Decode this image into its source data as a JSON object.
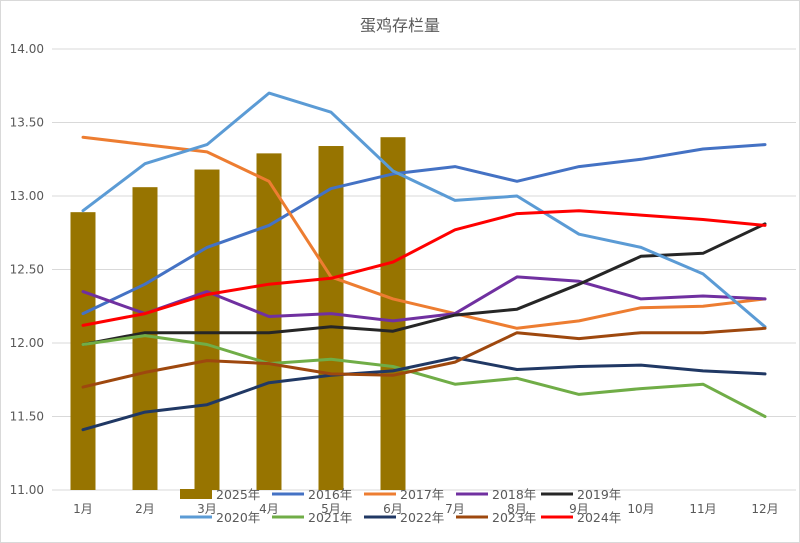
{
  "chart_data": {
    "type": "bar+line",
    "title": "蛋鸡存栏量",
    "categories": [
      "1月",
      "2月",
      "3月",
      "4月",
      "5月",
      "6月",
      "7月",
      "8月",
      "9月",
      "10月",
      "11月",
      "12月"
    ],
    "ylim": [
      11.0,
      14.0
    ],
    "yticks": [
      "11.00",
      "11.50",
      "12.00",
      "12.50",
      "13.00",
      "13.50",
      "14.00"
    ],
    "grid": true,
    "legend_position": "bottom",
    "bar_series": {
      "name": "2025年",
      "color": "#977400",
      "values": [
        12.89,
        13.06,
        13.18,
        13.29,
        13.34,
        13.4
      ]
    },
    "series": [
      {
        "name": "2016年",
        "color": "#4472c4",
        "values": [
          12.2,
          12.4,
          12.65,
          12.8,
          13.05,
          13.15,
          13.2,
          13.1,
          13.2,
          13.25,
          13.32,
          13.35
        ]
      },
      {
        "name": "2017年",
        "color": "#ed7d31",
        "values": [
          13.4,
          13.35,
          13.3,
          13.1,
          12.45,
          12.3,
          12.2,
          12.1,
          12.15,
          12.24,
          12.25,
          12.3
        ]
      },
      {
        "name": "2018年",
        "color": "#7030a0",
        "values": [
          12.35,
          12.2,
          12.35,
          12.18,
          12.2,
          12.15,
          12.2,
          12.45,
          12.42,
          12.3,
          12.32,
          12.3
        ]
      },
      {
        "name": "2019年",
        "color": "#262626",
        "values": [
          11.99,
          12.07,
          12.07,
          12.07,
          12.11,
          12.08,
          12.19,
          12.23,
          12.4,
          12.59,
          12.61,
          12.81
        ]
      },
      {
        "name": "2020年",
        "color": "#5b9bd5",
        "values": [
          12.9,
          13.22,
          13.35,
          13.7,
          13.57,
          13.17,
          12.97,
          13.0,
          12.74,
          12.65,
          12.47,
          12.11
        ]
      },
      {
        "name": "2021年",
        "color": "#70ad47",
        "values": [
          11.99,
          12.05,
          11.99,
          11.86,
          11.89,
          11.84,
          11.72,
          11.76,
          11.65,
          11.69,
          11.72,
          11.5
        ]
      },
      {
        "name": "2022年",
        "color": "#203864",
        "values": [
          11.41,
          11.53,
          11.58,
          11.73,
          11.78,
          11.81,
          11.9,
          11.82,
          11.84,
          11.85,
          11.81,
          11.79
        ]
      },
      {
        "name": "2023年",
        "color": "#9e480e",
        "values": [
          11.7,
          11.8,
          11.88,
          11.86,
          11.79,
          11.78,
          11.87,
          12.07,
          12.03,
          12.07,
          12.07,
          12.1
        ]
      },
      {
        "name": "2024年",
        "color": "#ff0000",
        "values": [
          12.12,
          12.2,
          12.33,
          12.4,
          12.44,
          12.55,
          12.77,
          12.88,
          12.9,
          12.87,
          12.84,
          12.8
        ]
      }
    ]
  }
}
